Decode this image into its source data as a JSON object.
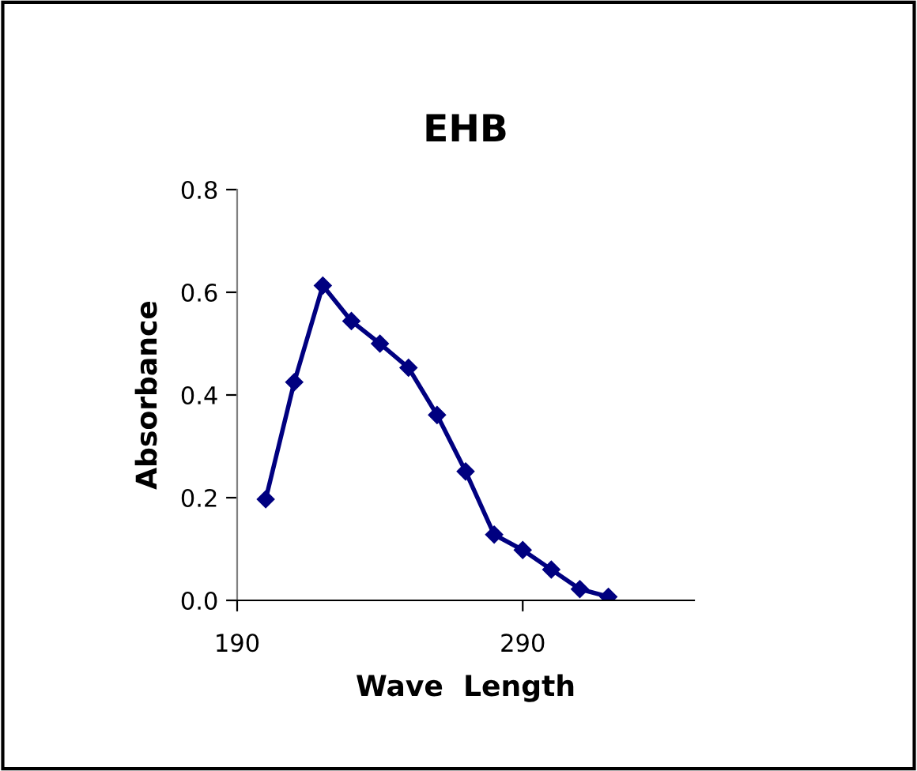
{
  "chart_data": {
    "type": "line",
    "title": "EHB",
    "xlabel": "Wave  Length",
    "ylabel": "Absorbance",
    "x": [
      200,
      210,
      220,
      230,
      240,
      250,
      260,
      270,
      280,
      290,
      300,
      310,
      320
    ],
    "series": [
      {
        "color": "#000080",
        "values": [
          0.197,
          0.425,
          0.613,
          0.544,
          0.5,
          0.453,
          0.361,
          0.251,
          0.128,
          0.098,
          0.06,
          0.022,
          0.007
        ]
      }
    ],
    "xlim": [
      190,
      350
    ],
    "xticks": [
      190,
      290
    ],
    "ylim": [
      0,
      0.8
    ],
    "yticks": [
      {
        "value": 0,
        "label": "0.0"
      },
      {
        "value": 0.2,
        "label": "0.2"
      },
      {
        "value": 0.4,
        "label": "0.4"
      },
      {
        "value": 0.6,
        "label": "0.6"
      },
      {
        "value": 0.8,
        "label": "0.8"
      }
    ],
    "marker": "diamond",
    "line_style": "solid",
    "grid": false,
    "legend": false
  }
}
